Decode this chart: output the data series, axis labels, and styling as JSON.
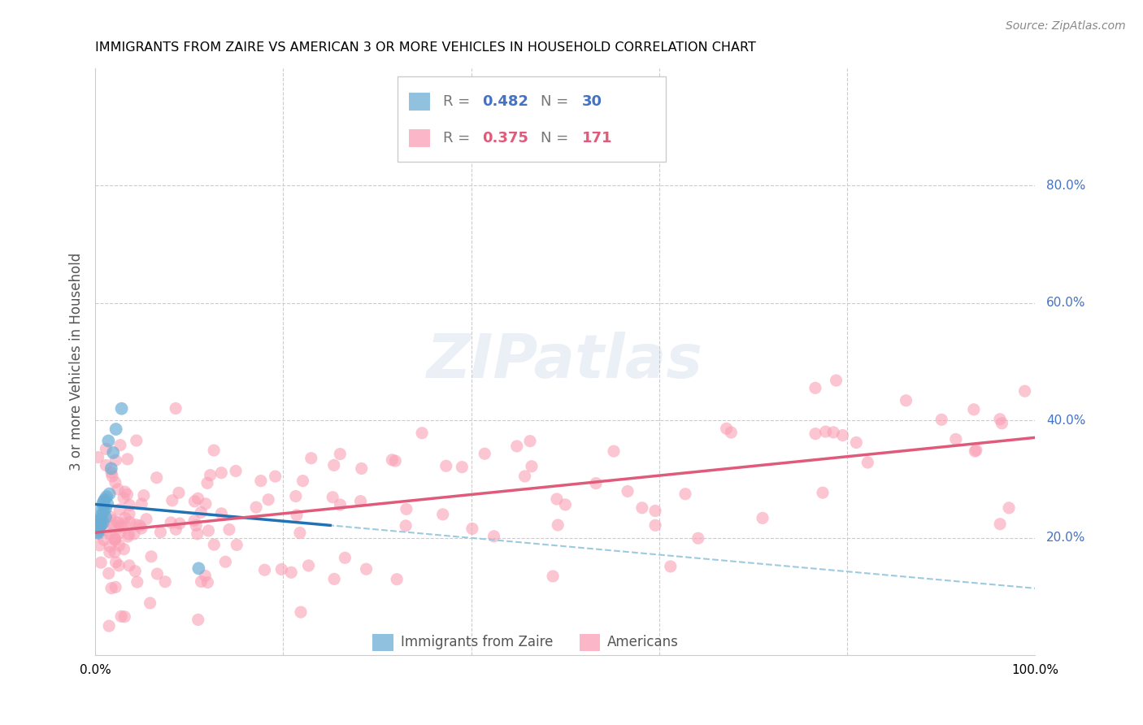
{
  "title": "IMMIGRANTS FROM ZAIRE VS AMERICAN 3 OR MORE VEHICLES IN HOUSEHOLD CORRELATION CHART",
  "source": "Source: ZipAtlas.com",
  "ylabel": "3 or more Vehicles in Household",
  "legend_label1": "Immigrants from Zaire",
  "legend_label2": "Americans",
  "R1": 0.482,
  "N1": 30,
  "R2": 0.375,
  "N2": 171,
  "blue_color": "#6baed6",
  "pink_color": "#fa9fb5",
  "blue_line_color": "#2171b5",
  "pink_line_color": "#e05a7a",
  "blue_dash_color": "#9ecae1",
  "background_color": "#ffffff",
  "grid_color": "#cccccc",
  "right_label_color": "#4472c4"
}
